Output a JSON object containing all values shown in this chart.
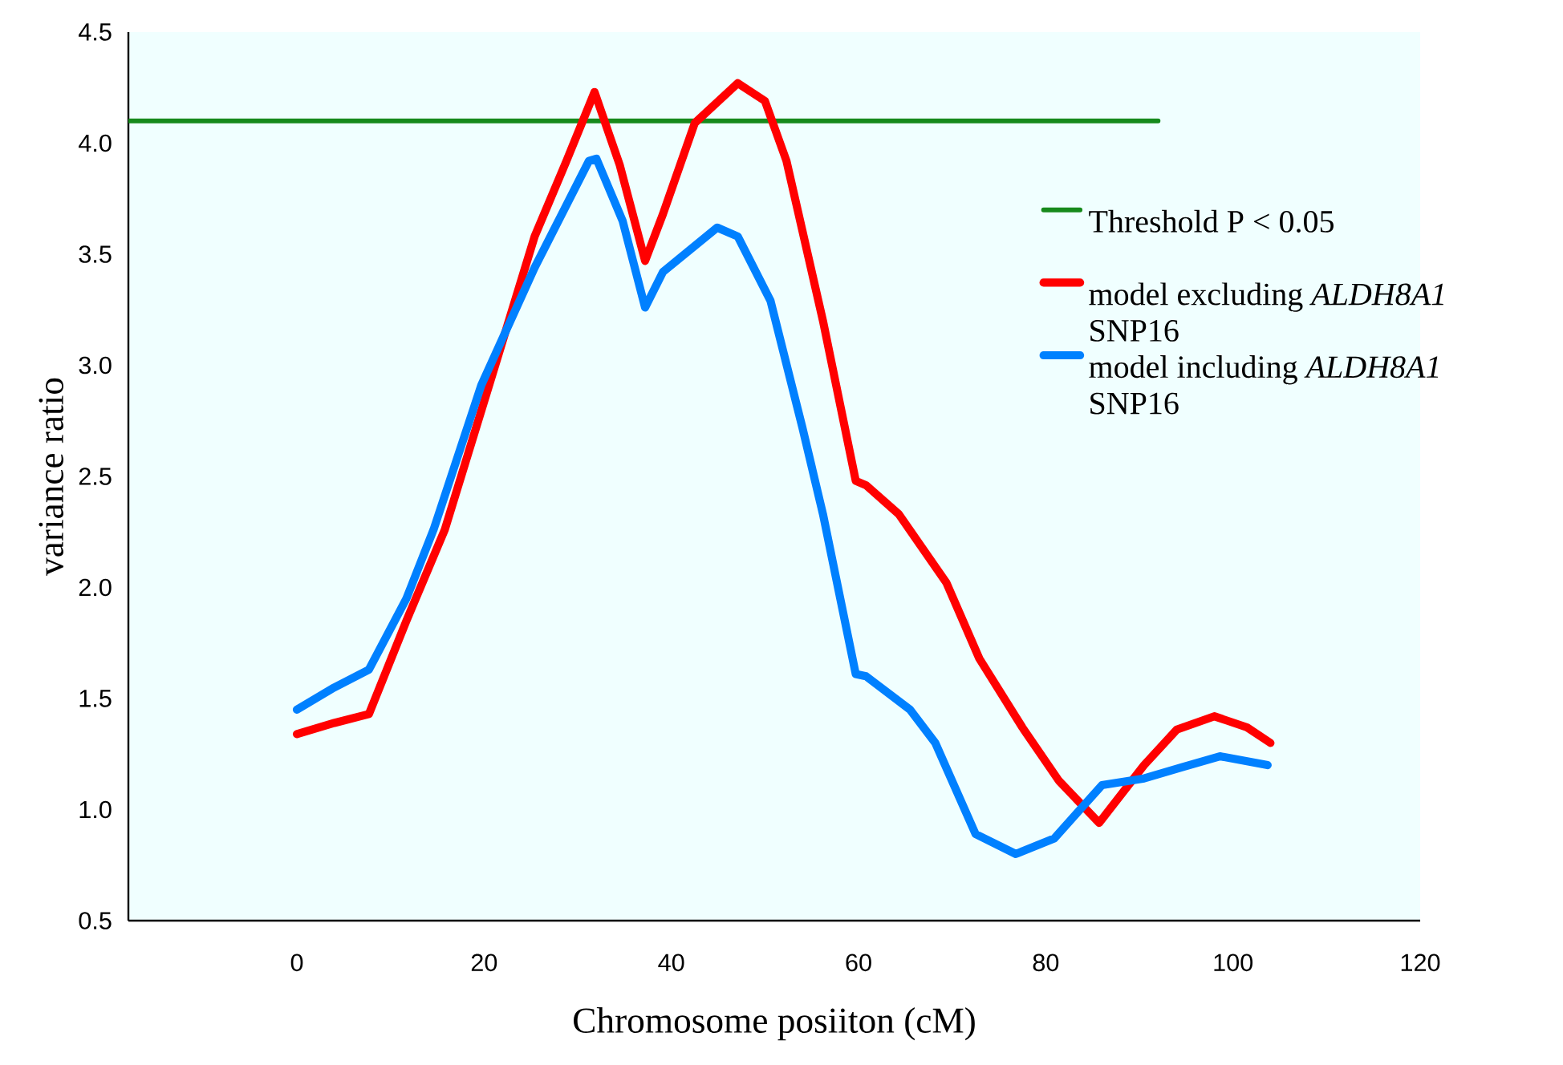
{
  "chart_data": {
    "type": "line",
    "xlabel": "Chromosome posiiton (cM)",
    "ylabel": "variance ratio",
    "xlim": [
      -18,
      120
    ],
    "xticks": [
      0,
      20,
      40,
      60,
      80,
      100,
      120
    ],
    "ylim": [
      0.5,
      4.5
    ],
    "yticks": [
      {
        "value": 0.5,
        "label": "0.5"
      },
      {
        "value": 1,
        "label": "1.0"
      },
      {
        "value": 1.5,
        "label": "1.5"
      },
      {
        "value": 2,
        "label": "2.0"
      },
      {
        "value": 2.5,
        "label": "2.5"
      },
      {
        "value": 3,
        "label": "3.0"
      },
      {
        "value": 3.5,
        "label": "3.5"
      },
      {
        "value": 4,
        "label": "4.0"
      },
      {
        "value": 4.5,
        "label": "4.5"
      }
    ],
    "grid": false,
    "legend": "right",
    "marker": "none",
    "line_style": "solid",
    "series": [
      {
        "name": "Threshold P < 0.05",
        "color": "#178a1c",
        "x": [
          -18,
          92
        ],
        "values": [
          4.1,
          4.1
        ]
      },
      {
        "name": "model excluding *ALDH8A1* SNP16",
        "color": "#ff0000",
        "x": [
          0,
          4,
          7.7,
          11.7,
          15.8,
          20.9,
          25.4,
          28.8,
          31.8,
          34.5,
          37.2,
          39.1,
          42.5,
          47.1,
          50,
          52.3,
          56.2,
          59.7,
          60.8,
          64.3,
          69.4,
          72.9,
          77.5,
          81.4,
          85.7,
          90.5,
          94,
          98,
          101.5,
          104
        ],
        "values": [
          1.34,
          1.39,
          1.43,
          1.85,
          2.26,
          2.96,
          3.58,
          3.92,
          4.23,
          3.9,
          3.47,
          3.68,
          4.09,
          4.27,
          4.19,
          3.92,
          3.2,
          2.48,
          2.46,
          2.33,
          2.02,
          1.68,
          1.37,
          1.13,
          0.94,
          1.2,
          1.36,
          1.42,
          1.37,
          1.3
        ]
      },
      {
        "name": "model including *ALDH8A1* SNP16",
        "color": "#0080ff",
        "x": [
          0,
          4,
          7.7,
          11.7,
          14.6,
          19.7,
          25.4,
          31.2,
          32,
          34.8,
          37.2,
          39.1,
          44.9,
          47.1,
          50.6,
          54,
          56.2,
          59.7,
          60.8,
          65.5,
          68.2,
          72.5,
          76.8,
          80.9,
          86,
          90.5,
          94.5,
          98.6,
          103.7
        ],
        "values": [
          1.45,
          1.55,
          1.63,
          1.95,
          2.26,
          2.91,
          3.44,
          3.92,
          3.93,
          3.65,
          3.26,
          3.42,
          3.62,
          3.58,
          3.29,
          2.72,
          2.33,
          1.61,
          1.6,
          1.45,
          1.3,
          0.89,
          0.8,
          0.87,
          1.11,
          1.14,
          1.19,
          1.24,
          1.2
        ]
      }
    ]
  }
}
